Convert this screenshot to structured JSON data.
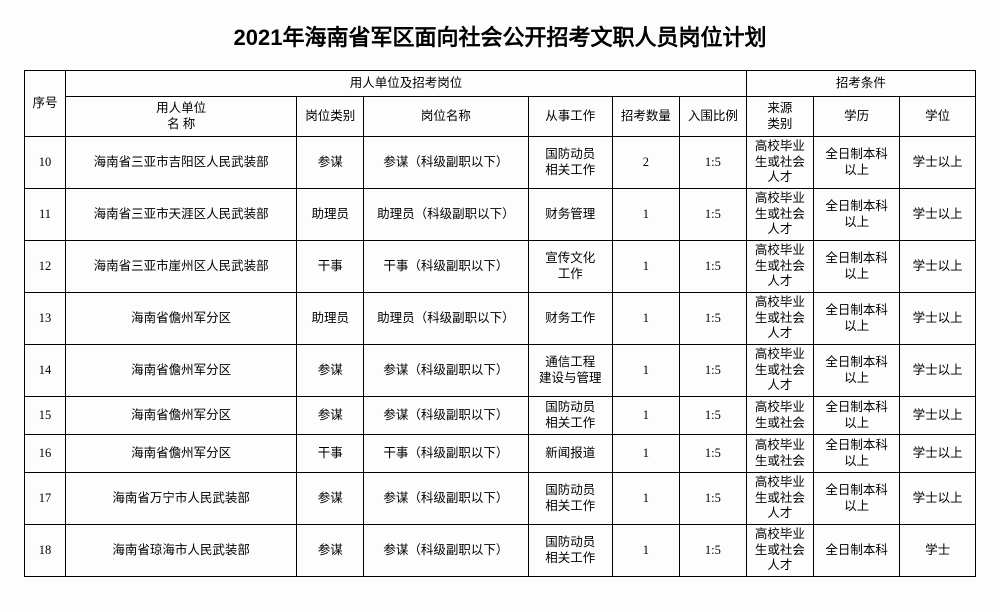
{
  "title": "2021年海南省军区面向社会公开招考文职人员岗位计划",
  "header_group1": "用人单位及招考岗位",
  "header_group2": "招考条件",
  "headers": {
    "seq": "序号",
    "unit": "用人单位\n名      称",
    "ptype": "岗位类别",
    "pname": "岗位名称",
    "work": "从事工作",
    "count": "招考数量",
    "ratio": "入围比例",
    "source": "来源\n类别",
    "edu": "学历",
    "degree": "学位"
  },
  "colwidths": {
    "seq": 38,
    "unit": 214,
    "ptype": 62,
    "pname": 152,
    "work": 78,
    "count": 62,
    "ratio": 62,
    "source": 62,
    "edu": 80,
    "degree": 70
  },
  "rowheights": {
    "head1": 26,
    "head2": 40,
    "body_full": 52,
    "body_short": 38
  },
  "rows": [
    {
      "short": false,
      "seq": "10",
      "unit": "海南省三亚市吉阳区人民武装部",
      "ptype": "参谋",
      "pname": "参谋（科级副职以下）",
      "work": "国防动员\n相关工作",
      "count": "2",
      "ratio": "1:5",
      "source": "高校毕业\n生或社会\n人才",
      "edu": "全日制本科\n以上",
      "degree": "学士以上"
    },
    {
      "short": false,
      "seq": "11",
      "unit": "海南省三亚市天涯区人民武装部",
      "ptype": "助理员",
      "pname": "助理员（科级副职以下）",
      "work": "财务管理",
      "count": "1",
      "ratio": "1:5",
      "source": "高校毕业\n生或社会\n人才",
      "edu": "全日制本科\n以上",
      "degree": "学士以上"
    },
    {
      "short": false,
      "seq": "12",
      "unit": "海南省三亚市崖州区人民武装部",
      "ptype": "干事",
      "pname": "干事（科级副职以下）",
      "work": "宣传文化\n工作",
      "count": "1",
      "ratio": "1:5",
      "source": "高校毕业\n生或社会\n人才",
      "edu": "全日制本科\n以上",
      "degree": "学士以上"
    },
    {
      "short": false,
      "seq": "13",
      "unit": "海南省儋州军分区",
      "ptype": "助理员",
      "pname": "助理员（科级副职以下）",
      "work": "财务工作",
      "count": "1",
      "ratio": "1:5",
      "source": "高校毕业\n生或社会\n人才",
      "edu": "全日制本科\n以上",
      "degree": "学士以上"
    },
    {
      "short": false,
      "seq": "14",
      "unit": "海南省儋州军分区",
      "ptype": "参谋",
      "pname": "参谋（科级副职以下）",
      "work": "通信工程\n建设与管理",
      "count": "1",
      "ratio": "1:5",
      "source": "高校毕业\n生或社会\n人才",
      "edu": "全日制本科\n以上",
      "degree": "学士以上"
    },
    {
      "short": true,
      "seq": "15",
      "unit": "海南省儋州军分区",
      "ptype": "参谋",
      "pname": "参谋（科级副职以下）",
      "work": "国防动员\n相关工作",
      "count": "1",
      "ratio": "1:5",
      "source": "高校毕业\n生或社会",
      "edu": "全日制本科\n以上",
      "degree": "学士以上"
    },
    {
      "short": true,
      "seq": "16",
      "unit": "海南省儋州军分区",
      "ptype": "干事",
      "pname": "干事（科级副职以下）",
      "work": "新闻报道",
      "count": "1",
      "ratio": "1:5",
      "source": "高校毕业\n生或社会",
      "edu": "全日制本科\n以上",
      "degree": "学士以上"
    },
    {
      "short": false,
      "seq": "17",
      "unit": "海南省万宁市人民武装部",
      "ptype": "参谋",
      "pname": "参谋（科级副职以下）",
      "work": "国防动员\n相关工作",
      "count": "1",
      "ratio": "1:5",
      "source": "高校毕业\n生或社会\n人才",
      "edu": "全日制本科\n以上",
      "degree": "学士以上"
    },
    {
      "short": false,
      "seq": "18",
      "unit": "海南省琼海市人民武装部",
      "ptype": "参谋",
      "pname": "参谋（科级副职以下）",
      "work": "国防动员\n相关工作",
      "count": "1",
      "ratio": "1:5",
      "source": "高校毕业\n生或社会\n人才",
      "edu": "全日制本科",
      "degree": "学士"
    }
  ]
}
